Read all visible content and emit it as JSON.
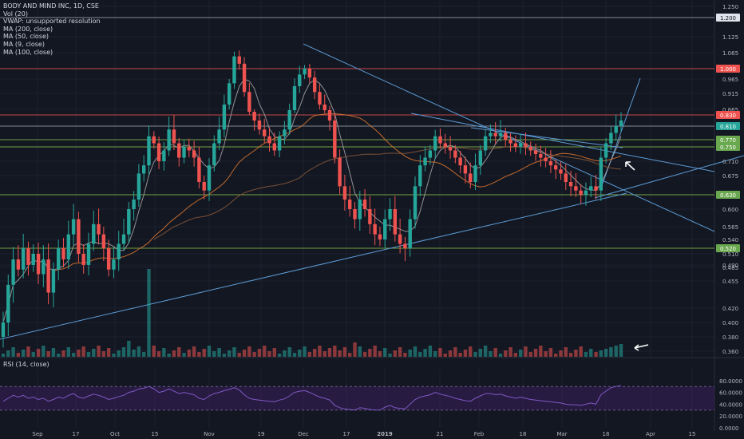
{
  "legend": {
    "title": "BODY AND MIND INC, 1D, CSE",
    "lines": [
      "Vol (20)",
      "VWAP: unsupported resolution",
      "MA (200, close)",
      "MA (50, close)",
      "MA (9, close)",
      "MA (100, close)"
    ]
  },
  "rsi_label": "RSI (14, close)",
  "colors": {
    "background": "#131722",
    "up": "#26a69a",
    "down": "#ef5350",
    "trendline": "#5b9bd5",
    "rsi_band": "#3a1f5c",
    "rsi_line": "#7e57c2",
    "ma_short": "#a8a8a8",
    "ma_long": "#e0782e"
  },
  "chart_data": [
    {
      "type": "candlestick",
      "title": "BODY AND MIND INC, 1D, CSE",
      "ylim": [
        0.34,
        1.26
      ],
      "y_ticks": [
        "1.250",
        "1.200",
        "1.125",
        "1.065",
        "1.000",
        "0.965",
        "0.915",
        "0.865",
        "0.810",
        "0.770",
        "0.750",
        "0.710",
        "0.675",
        "0.630",
        "0.600",
        "0.565",
        "0.540",
        "0.510",
        "0.490",
        "0.485",
        "0.455",
        "0.420",
        "0.400",
        "0.380",
        "0.360"
      ],
      "x_ticks": [
        "Sep",
        "17",
        "Oct",
        "15",
        "Nov",
        "19",
        "Dec",
        "17",
        "2019",
        "21",
        "Feb",
        "18",
        "Mar",
        "18",
        "Apr",
        "15"
      ],
      "horizontal_levels": [
        {
          "label": "1.200",
          "value": 1.2,
          "kind": "plain"
        },
        {
          "label": "1.000",
          "value": 1.0,
          "kind": "red"
        },
        {
          "label": "0.830",
          "value": 0.83,
          "kind": "red"
        },
        {
          "label": "0.810",
          "value": 0.81,
          "kind": "teal"
        },
        {
          "label": "0.770",
          "value": 0.77,
          "kind": "green"
        },
        {
          "label": "0.750",
          "value": 0.75,
          "kind": "green"
        },
        {
          "label": "0.630",
          "value": 0.63,
          "kind": "green"
        },
        {
          "label": "0.520",
          "value": 0.52,
          "kind": "green"
        }
      ],
      "closes": [
        0.4,
        0.45,
        0.5,
        0.48,
        0.52,
        0.49,
        0.51,
        0.47,
        0.5,
        0.44,
        0.48,
        0.52,
        0.5,
        0.55,
        0.58,
        0.51,
        0.49,
        0.53,
        0.57,
        0.55,
        0.52,
        0.48,
        0.5,
        0.53,
        0.55,
        0.6,
        0.62,
        0.68,
        0.7,
        0.78,
        0.76,
        0.71,
        0.74,
        0.8,
        0.76,
        0.72,
        0.75,
        0.74,
        0.72,
        0.66,
        0.64,
        0.7,
        0.76,
        0.8,
        0.88,
        0.95,
        1.05,
        1.02,
        0.92,
        0.85,
        0.82,
        0.8,
        0.78,
        0.76,
        0.74,
        0.78,
        0.8,
        0.86,
        0.94,
        0.98,
        1.0,
        0.97,
        0.92,
        0.88,
        0.86,
        0.82,
        0.72,
        0.65,
        0.62,
        0.6,
        0.58,
        0.62,
        0.6,
        0.57,
        0.55,
        0.54,
        0.58,
        0.6,
        0.55,
        0.53,
        0.52,
        0.58,
        0.65,
        0.7,
        0.72,
        0.74,
        0.78,
        0.76,
        0.75,
        0.74,
        0.72,
        0.7,
        0.68,
        0.66,
        0.7,
        0.74,
        0.78,
        0.79,
        0.78,
        0.79,
        0.77,
        0.76,
        0.75,
        0.76,
        0.75,
        0.74,
        0.73,
        0.72,
        0.71,
        0.7,
        0.69,
        0.68,
        0.66,
        0.65,
        0.64,
        0.63,
        0.64,
        0.65,
        0.64,
        0.72,
        0.76,
        0.79,
        0.81,
        0.82
      ],
      "vol_markers": [
        "arrow-up",
        "arrow-left"
      ],
      "trendlines": [
        {
          "from": [
            "Jul",
            0.38
          ],
          "to": [
            "Mar",
            0.64
          ]
        },
        {
          "from": [
            "Dec",
            1.09
          ],
          "to": [
            "Apr",
            0.56
          ]
        },
        {
          "from": [
            "Jan",
            0.85
          ],
          "to": [
            "Apr",
            0.68
          ]
        }
      ]
    },
    {
      "type": "line",
      "title": "RSI (14, close)",
      "ylim": [
        0,
        100
      ],
      "y_ticks": [
        "80.0000",
        "60.0000",
        "40.0000",
        "20.0000",
        "0.0000"
      ],
      "band": [
        30,
        70
      ],
      "values": [
        45,
        50,
        55,
        52,
        55,
        50,
        52,
        48,
        50,
        45,
        48,
        52,
        50,
        55,
        58,
        52,
        50,
        54,
        57,
        55,
        52,
        48,
        50,
        53,
        55,
        60,
        62,
        66,
        67,
        70,
        66,
        60,
        62,
        66,
        62,
        58,
        60,
        58,
        56,
        50,
        48,
        54,
        58,
        60,
        63,
        65,
        68,
        64,
        56,
        50,
        48,
        47,
        46,
        45,
        44,
        47,
        49,
        54,
        60,
        62,
        63,
        60,
        56,
        52,
        50,
        47,
        38,
        34,
        32,
        31,
        30,
        34,
        33,
        31,
        30,
        30,
        35,
        38,
        34,
        33,
        32,
        40,
        48,
        52,
        54,
        56,
        60,
        57,
        55,
        53,
        50,
        48,
        46,
        45,
        50,
        54,
        58,
        58,
        56,
        57,
        54,
        52,
        50,
        52,
        50,
        48,
        47,
        46,
        45,
        44,
        43,
        42,
        40,
        39,
        39,
        38,
        40,
        42,
        40,
        56,
        62,
        68,
        70,
        72
      ]
    }
  ]
}
